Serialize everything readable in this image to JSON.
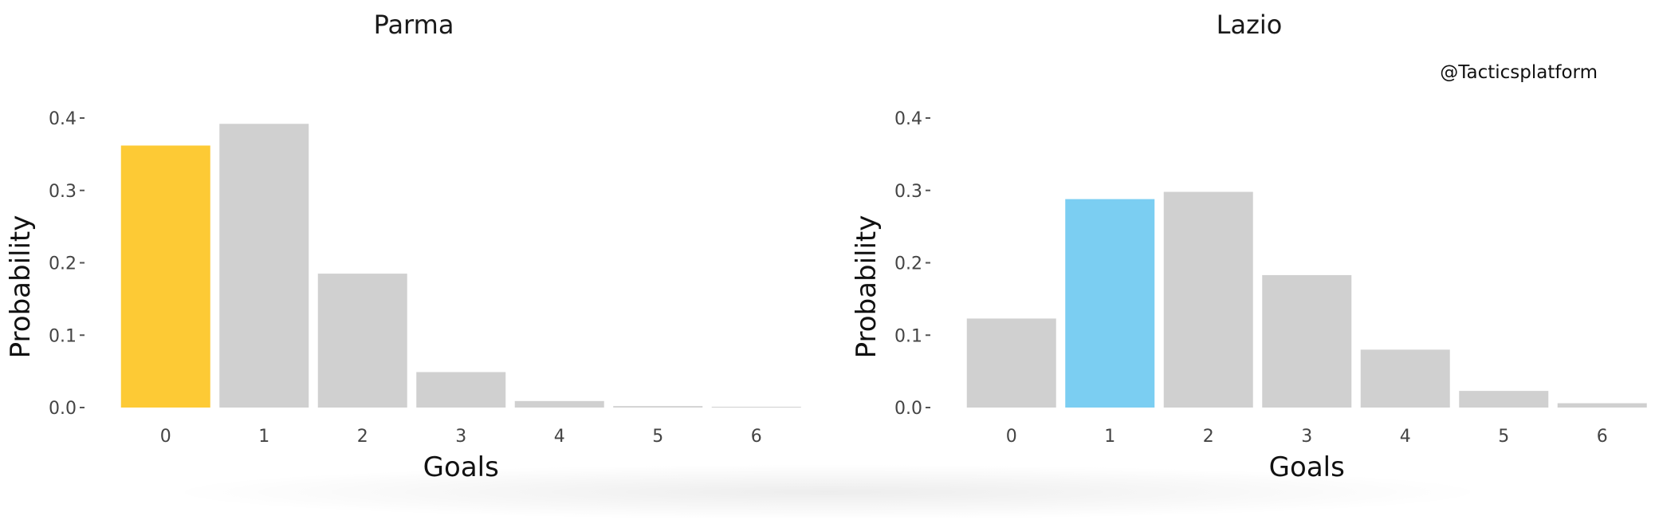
{
  "watermark": "@Tacticsplatform",
  "colors": {
    "bar_default": "#d0d0d0",
    "highlight_left": "#fdca35",
    "highlight_right": "#7bcef2"
  },
  "chart_data": [
    {
      "type": "bar",
      "title": "Parma",
      "xlabel": "Goals",
      "ylabel": "Probability",
      "categories": [
        "0",
        "1",
        "2",
        "3",
        "4",
        "5",
        "6"
      ],
      "values": [
        0.362,
        0.392,
        0.185,
        0.049,
        0.009,
        0.002,
        0.001
      ],
      "highlight_index": 0,
      "highlight_color": "#fdca35",
      "ylim": [
        0,
        0.4
      ],
      "yticks": [
        "0.0",
        "0.1",
        "0.2",
        "0.3",
        "0.4"
      ],
      "grid": false
    },
    {
      "type": "bar",
      "title": "Lazio",
      "xlabel": "Goals",
      "ylabel": "Probability",
      "categories": [
        "0",
        "1",
        "2",
        "3",
        "4",
        "5",
        "6"
      ],
      "values": [
        0.123,
        0.288,
        0.298,
        0.183,
        0.08,
        0.023,
        0.006
      ],
      "highlight_index": 1,
      "highlight_color": "#7bcef2",
      "ylim": [
        0,
        0.4
      ],
      "yticks": [
        "0.0",
        "0.1",
        "0.2",
        "0.3",
        "0.4"
      ],
      "grid": false
    }
  ]
}
